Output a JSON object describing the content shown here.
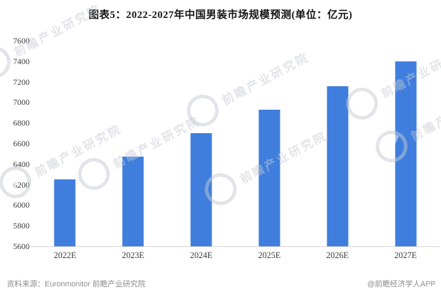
{
  "chart_data": {
    "type": "bar",
    "title": "图表5：2022-2027年中国男装市场规模预测(单位：亿元)",
    "unit": "亿元",
    "categories": [
      "2022E",
      "2023E",
      "2024E",
      "2025E",
      "2026E",
      "2027E"
    ],
    "values": [
      6250,
      6470,
      6700,
      6930,
      7160,
      7400
    ],
    "xlabel": "",
    "ylabel": "",
    "ylim": [
      5600,
      7600
    ],
    "ytick_step": 200,
    "grid": false,
    "legend_position": "none",
    "bar_color": "#3f7edd"
  },
  "footer": {
    "source": "资料来源：Euronmonitor 前瞻产业研究院",
    "credit": "@前瞻经济学人APP"
  },
  "watermark": {
    "text": "前瞻产业研究院"
  }
}
